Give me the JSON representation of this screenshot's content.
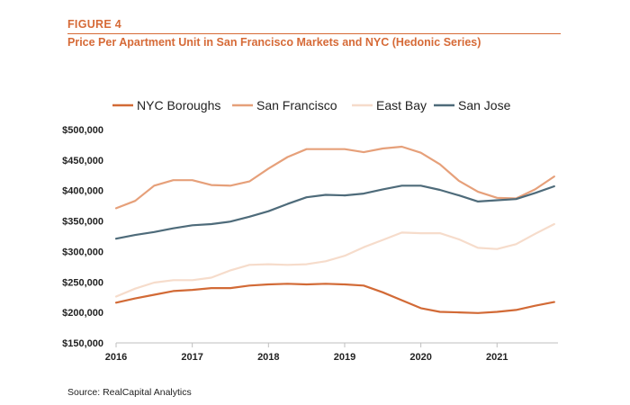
{
  "header": {
    "figure_label": "FIGURE 4",
    "title": "Price Per Apartment Unit in San Francisco Markets and NYC (Hedonic Series)"
  },
  "footer": {
    "source": "Source: RealCapital Analytics"
  },
  "chart_data": {
    "type": "line",
    "title": "Price Per Apartment Unit in San Francisco Markets and NYC (Hedonic Series)",
    "xlabel": "",
    "ylabel": "",
    "xlim": [
      2016,
      2021.8
    ],
    "ylim": [
      150000,
      500000
    ],
    "y_ticks": [
      150000,
      200000,
      250000,
      300000,
      350000,
      400000,
      450000,
      500000
    ],
    "y_tick_labels": [
      "$150,000",
      "$200,000",
      "$250,000",
      "$300,000",
      "$350,000",
      "$400,000",
      "$450,000",
      "$500,000"
    ],
    "x_ticks": [
      2016,
      2017,
      2018,
      2019,
      2020,
      2021
    ],
    "x_tick_labels": [
      "2016",
      "2017",
      "2018",
      "2019",
      "2020",
      "2021"
    ],
    "grid": false,
    "legend_position": "top",
    "x": [
      2016,
      2016.25,
      2016.5,
      2016.75,
      2017,
      2017.25,
      2017.5,
      2017.75,
      2018,
      2018.25,
      2018.5,
      2018.75,
      2019,
      2019.25,
      2019.5,
      2019.75,
      2020,
      2020.25,
      2020.5,
      2020.75,
      2021,
      2021.25,
      2021.5,
      2021.75
    ],
    "series": [
      {
        "name": "NYC Boroughs",
        "color": "#d26a36",
        "values": [
          216000,
          223000,
          229000,
          235000,
          237000,
          240000,
          240000,
          244000,
          246000,
          247000,
          246000,
          247000,
          246000,
          244000,
          233000,
          220000,
          207000,
          201000,
          200000,
          199000,
          201000,
          204000,
          211000,
          217000
        ]
      },
      {
        "name": "San Francisco",
        "color": "#e6a07a",
        "values": [
          371000,
          383000,
          408000,
          417000,
          417000,
          409000,
          408000,
          415000,
          436000,
          455000,
          468000,
          468000,
          468000,
          463000,
          469000,
          472000,
          462000,
          443000,
          416000,
          398000,
          388000,
          387000,
          402000,
          423000
        ]
      },
      {
        "name": "East Bay",
        "color": "#f6dccb",
        "values": [
          226000,
          239000,
          249000,
          253000,
          253000,
          257000,
          269000,
          278000,
          279000,
          278000,
          279000,
          284000,
          293000,
          307000,
          319000,
          331000,
          330000,
          330000,
          320000,
          306000,
          304000,
          312000,
          329000,
          345000
        ]
      },
      {
        "name": "San Jose",
        "color": "#4e6b7a",
        "values": [
          321000,
          327000,
          332000,
          338000,
          343000,
          345000,
          349000,
          357000,
          366000,
          378000,
          389000,
          393000,
          392000,
          395000,
          402000,
          408000,
          408000,
          401000,
          392000,
          382000,
          384000,
          386000,
          396000,
          407000
        ]
      }
    ]
  }
}
